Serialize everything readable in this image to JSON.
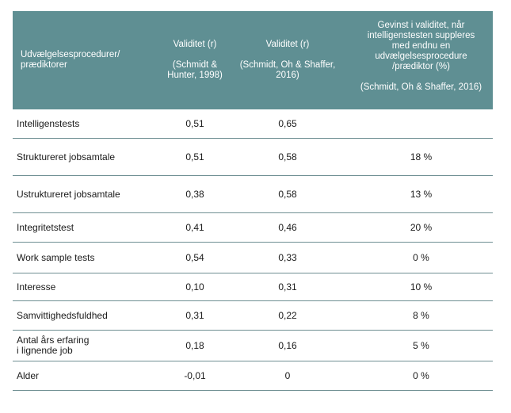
{
  "header": {
    "col0": [
      "Udvælgelsesprocedurer/",
      "prædiktorer"
    ],
    "col1": [
      "Validitet (r)",
      "",
      "(Schmidt &",
      "Hunter, 1998)"
    ],
    "col2": [
      "Validitet (r)",
      "",
      "(Schmidt, Oh & Shaffer,",
      "2016)"
    ],
    "col3": [
      "Gevinst i validitet, når",
      "intelligenstesten suppleres",
      "med endnu en",
      "udvælgelsesprocedure",
      "/prædiktor (%)",
      "",
      "(Schmidt, Oh & Shaffer, 2016)"
    ]
  },
  "rows": [
    {
      "label": [
        "Intelligenstests"
      ],
      "v1998": "0,51",
      "v2016": "0,65",
      "gain": ""
    },
    {
      "label": [
        "Struktureret jobsamtale"
      ],
      "v1998": "0,51",
      "v2016": "0,58",
      "gain": "18 %"
    },
    {
      "label": [
        "Ustruktureret jobsamtale"
      ],
      "v1998": "0,38",
      "v2016": "0,58",
      "gain": "13 %"
    },
    {
      "label": [
        "Integritetstest"
      ],
      "v1998": "0,41",
      "v2016": "0,46",
      "gain": "20 %"
    },
    {
      "label": [
        "Work sample tests"
      ],
      "v1998": "0,54",
      "v2016": "0,33",
      "gain": "0 %"
    },
    {
      "label": [
        "Interesse"
      ],
      "v1998": "0,10",
      "v2016": "0,31",
      "gain": "10 %"
    },
    {
      "label": [
        "Samvittighedsfuldhed"
      ],
      "v1998": "0,31",
      "v2016": "0,22",
      "gain": "8 %"
    },
    {
      "label": [
        "Antal års erfaring",
        "i lignende job"
      ],
      "v1998": "0,18",
      "v2016": "0,16",
      "gain": "5 %"
    },
    {
      "label": [
        "Alder"
      ],
      "v1998": "-0,01",
      "v2016": "0",
      "gain": "0 %"
    }
  ]
}
